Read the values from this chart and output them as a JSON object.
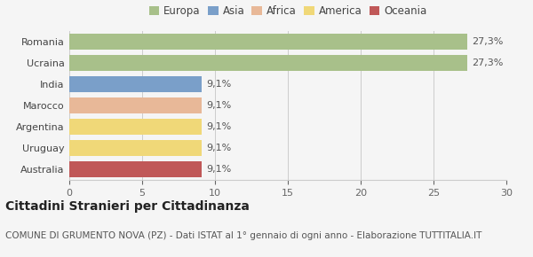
{
  "categories": [
    "Romania",
    "Ucraina",
    "India",
    "Marocco",
    "Argentina",
    "Uruguay",
    "Australia"
  ],
  "values": [
    27.3,
    27.3,
    9.1,
    9.1,
    9.1,
    9.1,
    9.1
  ],
  "labels": [
    "27,3%",
    "27,3%",
    "9,1%",
    "9,1%",
    "9,1%",
    "9,1%",
    "9,1%"
  ],
  "bar_colors": [
    "#a8c08a",
    "#a8c08a",
    "#7a9fc9",
    "#e8b898",
    "#f0d878",
    "#f0d878",
    "#c05858"
  ],
  "legend_labels": [
    "Europa",
    "Asia",
    "Africa",
    "America",
    "Oceania"
  ],
  "legend_colors": [
    "#a8c08a",
    "#7a9fc9",
    "#e8b898",
    "#f0d878",
    "#c05858"
  ],
  "xlim": [
    0,
    30
  ],
  "xticks": [
    0,
    5,
    10,
    15,
    20,
    25,
    30
  ],
  "title": "Cittadini Stranieri per Cittadinanza",
  "subtitle": "COMUNE DI GRUMENTO NOVA (PZ) - Dati ISTAT al 1° gennaio di ogni anno - Elaborazione TUTTITALIA.IT",
  "background_color": "#f5f5f5",
  "bar_height": 0.75,
  "title_fontsize": 10,
  "subtitle_fontsize": 7.5,
  "label_fontsize": 8,
  "tick_fontsize": 8,
  "legend_fontsize": 8.5
}
